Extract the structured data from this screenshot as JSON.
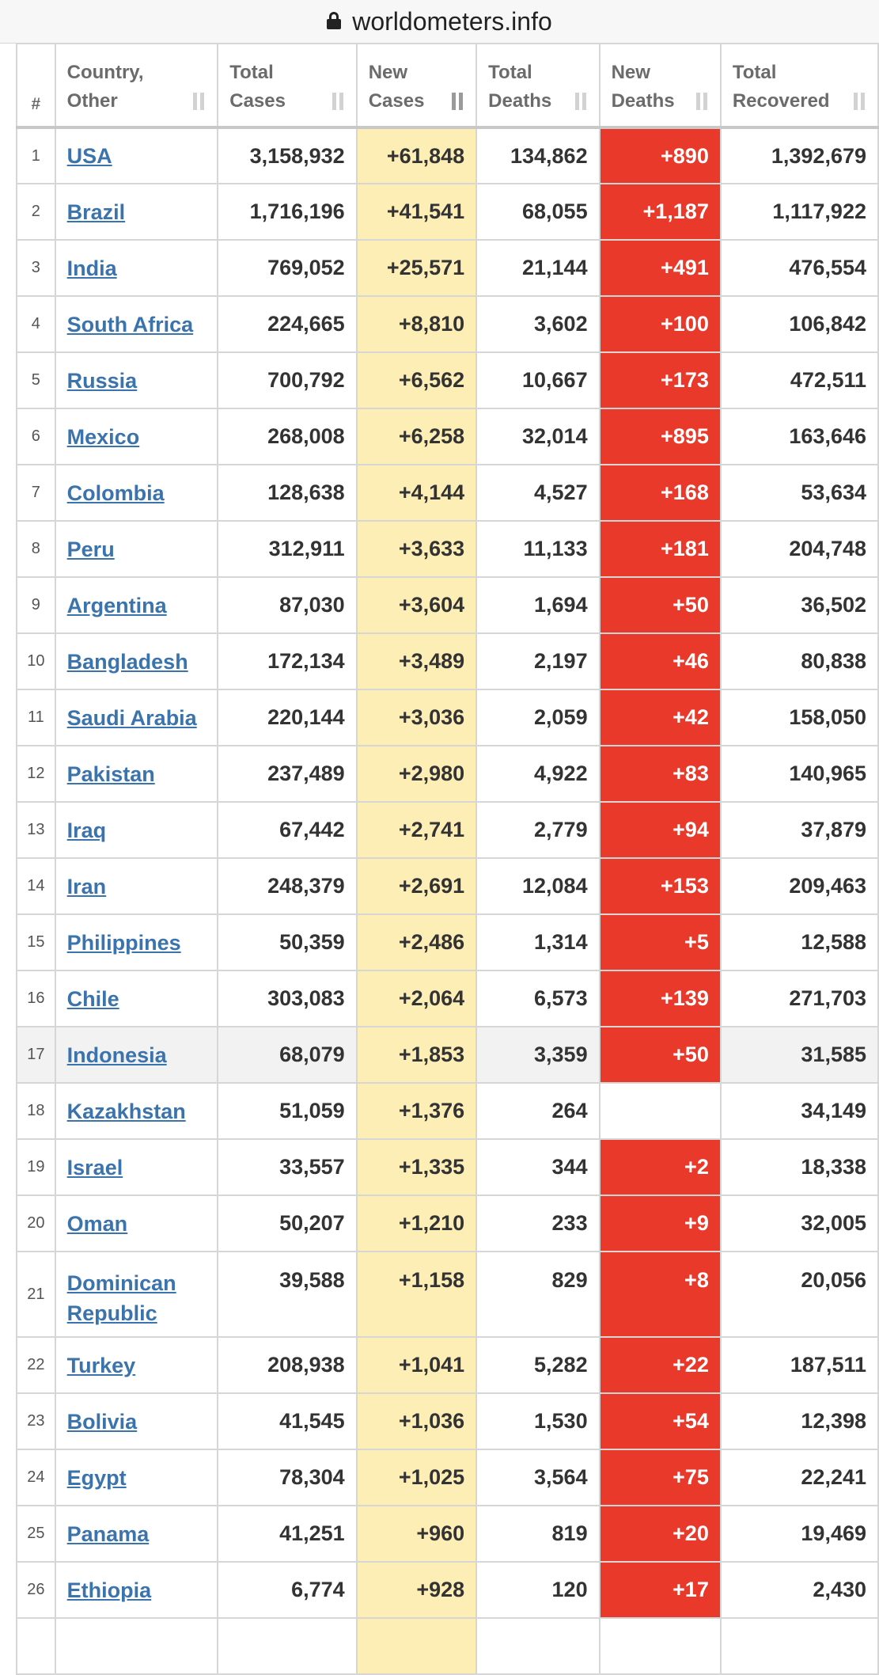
{
  "browser": {
    "url": "worldometers.info"
  },
  "table": {
    "headers": {
      "rank": "#",
      "country": [
        "Country,",
        "Other"
      ],
      "total_cases": [
        "Total",
        "Cases"
      ],
      "new_cases": [
        "New",
        "Cases"
      ],
      "total_deaths": [
        "Total",
        "Deaths"
      ],
      "new_deaths": [
        "New",
        "Deaths"
      ],
      "total_recovered": [
        "Total",
        "Recovered"
      ]
    },
    "sorted_column": "new_cases",
    "colors": {
      "new_cases_bg": "#fdeeb6",
      "new_deaths_bg": "#e8392b",
      "link": "#3b73ad"
    },
    "rows": [
      {
        "rank": "1",
        "country": "USA",
        "total_cases": "3,158,932",
        "new_cases": "+61,848",
        "total_deaths": "134,862",
        "new_deaths": "+890",
        "total_recovered": "1,392,679"
      },
      {
        "rank": "2",
        "country": "Brazil",
        "total_cases": "1,716,196",
        "new_cases": "+41,541",
        "total_deaths": "68,055",
        "new_deaths": "+1,187",
        "total_recovered": "1,117,922"
      },
      {
        "rank": "3",
        "country": "India",
        "total_cases": "769,052",
        "new_cases": "+25,571",
        "total_deaths": "21,144",
        "new_deaths": "+491",
        "total_recovered": "476,554"
      },
      {
        "rank": "4",
        "country": "South Africa",
        "total_cases": "224,665",
        "new_cases": "+8,810",
        "total_deaths": "3,602",
        "new_deaths": "+100",
        "total_recovered": "106,842"
      },
      {
        "rank": "5",
        "country": "Russia",
        "total_cases": "700,792",
        "new_cases": "+6,562",
        "total_deaths": "10,667",
        "new_deaths": "+173",
        "total_recovered": "472,511"
      },
      {
        "rank": "6",
        "country": "Mexico",
        "total_cases": "268,008",
        "new_cases": "+6,258",
        "total_deaths": "32,014",
        "new_deaths": "+895",
        "total_recovered": "163,646"
      },
      {
        "rank": "7",
        "country": "Colombia",
        "total_cases": "128,638",
        "new_cases": "+4,144",
        "total_deaths": "4,527",
        "new_deaths": "+168",
        "total_recovered": "53,634"
      },
      {
        "rank": "8",
        "country": "Peru",
        "total_cases": "312,911",
        "new_cases": "+3,633",
        "total_deaths": "11,133",
        "new_deaths": "+181",
        "total_recovered": "204,748"
      },
      {
        "rank": "9",
        "country": "Argentina",
        "total_cases": "87,030",
        "new_cases": "+3,604",
        "total_deaths": "1,694",
        "new_deaths": "+50",
        "total_recovered": "36,502"
      },
      {
        "rank": "10",
        "country": "Bangladesh",
        "total_cases": "172,134",
        "new_cases": "+3,489",
        "total_deaths": "2,197",
        "new_deaths": "+46",
        "total_recovered": "80,838"
      },
      {
        "rank": "11",
        "country": "Saudi Arabia",
        "total_cases": "220,144",
        "new_cases": "+3,036",
        "total_deaths": "2,059",
        "new_deaths": "+42",
        "total_recovered": "158,050"
      },
      {
        "rank": "12",
        "country": "Pakistan",
        "total_cases": "237,489",
        "new_cases": "+2,980",
        "total_deaths": "4,922",
        "new_deaths": "+83",
        "total_recovered": "140,965"
      },
      {
        "rank": "13",
        "country": "Iraq",
        "total_cases": "67,442",
        "new_cases": "+2,741",
        "total_deaths": "2,779",
        "new_deaths": "+94",
        "total_recovered": "37,879"
      },
      {
        "rank": "14",
        "country": "Iran",
        "total_cases": "248,379",
        "new_cases": "+2,691",
        "total_deaths": "12,084",
        "new_deaths": "+153",
        "total_recovered": "209,463"
      },
      {
        "rank": "15",
        "country": "Philippines",
        "total_cases": "50,359",
        "new_cases": "+2,486",
        "total_deaths": "1,314",
        "new_deaths": "+5",
        "total_recovered": "12,588"
      },
      {
        "rank": "16",
        "country": "Chile",
        "total_cases": "303,083",
        "new_cases": "+2,064",
        "total_deaths": "6,573",
        "new_deaths": "+139",
        "total_recovered": "271,703"
      },
      {
        "rank": "17",
        "country": "Indonesia",
        "total_cases": "68,079",
        "new_cases": "+1,853",
        "total_deaths": "3,359",
        "new_deaths": "+50",
        "total_recovered": "31,585"
      },
      {
        "rank": "18",
        "country": "Kazakhstan",
        "total_cases": "51,059",
        "new_cases": "+1,376",
        "total_deaths": "264",
        "new_deaths": "",
        "total_recovered": "34,149"
      },
      {
        "rank": "19",
        "country": "Israel",
        "total_cases": "33,557",
        "new_cases": "+1,335",
        "total_deaths": "344",
        "new_deaths": "+2",
        "total_recovered": "18,338"
      },
      {
        "rank": "20",
        "country": "Oman",
        "total_cases": "50,207",
        "new_cases": "+1,210",
        "total_deaths": "233",
        "new_deaths": "+9",
        "total_recovered": "32,005"
      },
      {
        "rank": "21",
        "country": "Dominican Republic",
        "total_cases": "39,588",
        "new_cases": "+1,158",
        "total_deaths": "829",
        "new_deaths": "+8",
        "total_recovered": "20,056"
      },
      {
        "rank": "22",
        "country": "Turkey",
        "total_cases": "208,938",
        "new_cases": "+1,041",
        "total_deaths": "5,282",
        "new_deaths": "+22",
        "total_recovered": "187,511"
      },
      {
        "rank": "23",
        "country": "Bolivia",
        "total_cases": "41,545",
        "new_cases": "+1,036",
        "total_deaths": "1,530",
        "new_deaths": "+54",
        "total_recovered": "12,398"
      },
      {
        "rank": "24",
        "country": "Egypt",
        "total_cases": "78,304",
        "new_cases": "+1,025",
        "total_deaths": "3,564",
        "new_deaths": "+75",
        "total_recovered": "22,241"
      },
      {
        "rank": "25",
        "country": "Panama",
        "total_cases": "41,251",
        "new_cases": "+960",
        "total_deaths": "819",
        "new_deaths": "+20",
        "total_recovered": "19,469"
      },
      {
        "rank": "26",
        "country": "Ethiopia",
        "total_cases": "6,774",
        "new_cases": "+928",
        "total_deaths": "120",
        "new_deaths": "+17",
        "total_recovered": "2,430"
      },
      {
        "rank": "",
        "country": "",
        "total_cases": "",
        "new_cases": "",
        "total_deaths": "",
        "new_deaths": "",
        "total_recovered": ""
      }
    ]
  }
}
